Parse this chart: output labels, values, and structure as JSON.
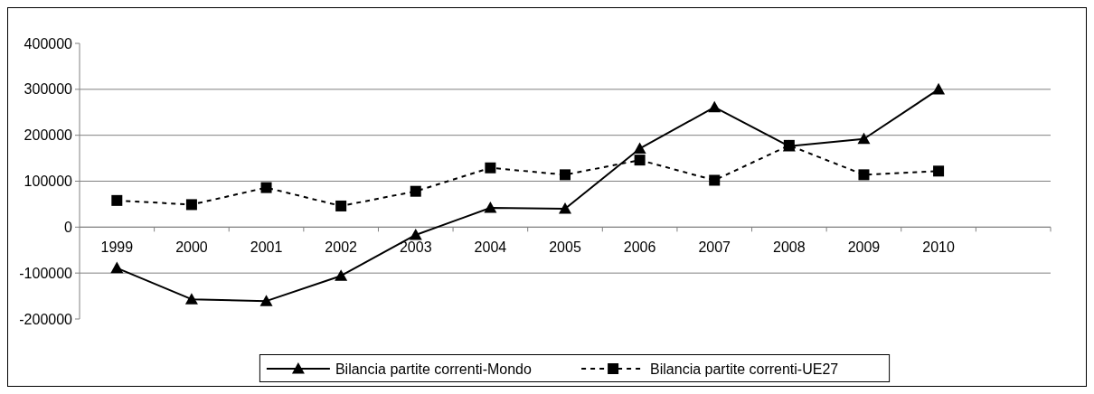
{
  "chart_data": {
    "type": "line",
    "categories": [
      "1999",
      "2000",
      "2001",
      "2002",
      "2003",
      "2004",
      "2005",
      "2006",
      "2007",
      "2008",
      "2009",
      "2010",
      null
    ],
    "series": [
      {
        "name": "Bilancia partite correnti-Mondo",
        "color": "#000000",
        "marker": "triangle",
        "line_style": "solid",
        "values": [
          -89000,
          -157000,
          -161000,
          -106000,
          -17000,
          42000,
          40000,
          171000,
          261000,
          176000,
          192000,
          300000,
          null
        ]
      },
      {
        "name": "Bilancia partite correnti-UE27",
        "color": "#000000",
        "marker": "square",
        "line_style": "dashed",
        "values": [
          58000,
          49000,
          86000,
          46000,
          78000,
          129000,
          114000,
          146000,
          102000,
          178000,
          114000,
          122000,
          null
        ]
      }
    ],
    "ylim": [
      -200000,
      400000
    ],
    "yticks": [
      -200000,
      -100000,
      0,
      100000,
      200000,
      300000,
      400000
    ],
    "grid": "y",
    "legend": "bottom"
  }
}
